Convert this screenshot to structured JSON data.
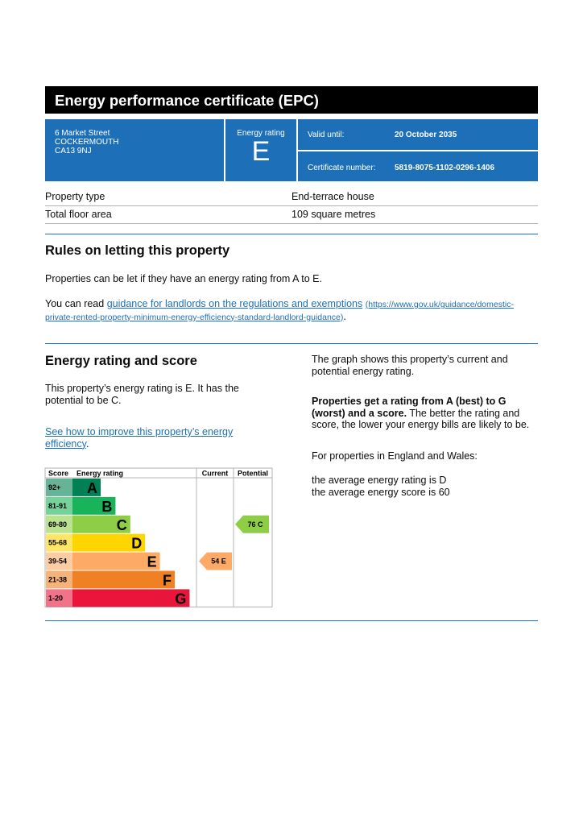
{
  "header": {
    "title": "Energy performance certificate (EPC)"
  },
  "address": [
    "6 Market Street",
    "COCKERMOUTH",
    "CA13 9NJ"
  ],
  "energy_rating": {
    "label": "Energy rating",
    "value": "E"
  },
  "valid_until": {
    "label": "Valid until:",
    "value": "20 October 2035"
  },
  "certificate_number": {
    "label": "Certificate number:",
    "value": "5819-8075-1102-0296-1406"
  },
  "property": [
    [
      "Property type",
      "End-terrace house"
    ],
    [
      "Total floor area",
      "109 square metres"
    ]
  ],
  "letting": {
    "heading": "Rules on letting this property",
    "text": "Properties can be let if they have an energy rating from A to E.",
    "read_prefix": "You can read ",
    "link": "guidance for landlords on the regulations and exemptions",
    "url": "(https://www.gov.uk/guidance/domestic-private-rented-property-minimum-energy-efficiency-standard-landlord-guidance)",
    "suffix": "."
  },
  "rating": {
    "heading": "Energy rating and score",
    "text": "This property’s energy rating is E. It has the potential to be C.",
    "link": "See how to improve this property’s energy efficiency",
    "suffix": ".",
    "graph_text": "The graph shows this property’s current and potential energy rating.",
    "bold_text": "Properties get a rating from A (best) to G (worst) and a score.",
    "rest_text": " The better the rating and score, the lower your energy bills are likely to be.",
    "region_text": "For properties in England and Wales:",
    "average_rating": "the average energy rating is D",
    "average_score": "the average energy score is 60"
  },
  "chart": {
    "headers": [
      "Score",
      "Energy rating",
      "Current",
      "Potential"
    ],
    "bands": [
      {
        "score": "92+",
        "letter": "A",
        "color": "#008054"
      },
      {
        "score": "81-91",
        "letter": "B",
        "color": "#19b459"
      },
      {
        "score": "69-80",
        "letter": "C",
        "color": "#8dce46"
      },
      {
        "score": "55-68",
        "letter": "D",
        "color": "#ffd500"
      },
      {
        "score": "39-54",
        "letter": "E",
        "color": "#fcaa65"
      },
      {
        "score": "21-38",
        "letter": "F",
        "color": "#ef8023"
      },
      {
        "score": "1-20",
        "letter": "G",
        "color": "#e9153b"
      }
    ],
    "current": {
      "score": 54,
      "letter": "E"
    },
    "potential": {
      "score": 76,
      "letter": "C"
    }
  }
}
